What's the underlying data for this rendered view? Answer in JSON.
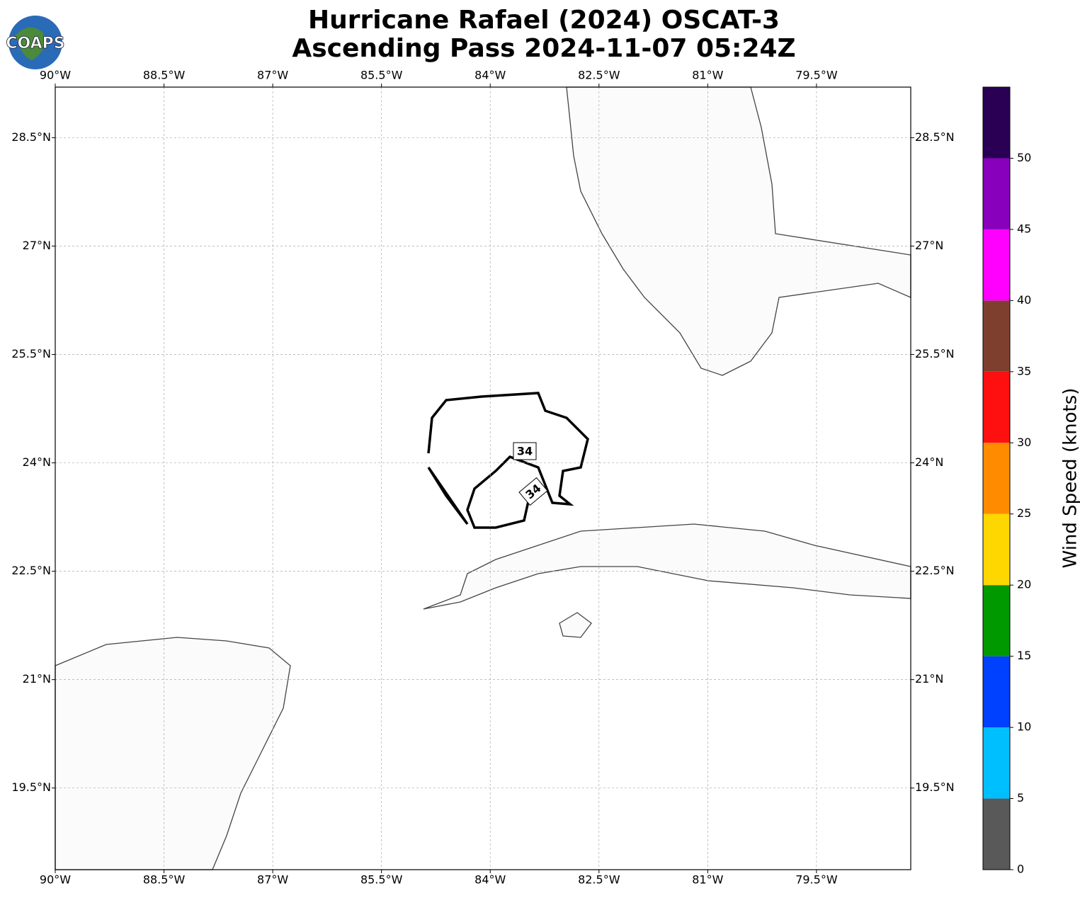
{
  "header": {
    "logo": "COAPS",
    "title_lines": [
      "Hurricane Rafael (2024) OSCAT-3",
      "Ascending Pass 2024-11-07 05:24Z"
    ]
  },
  "map": {
    "xlim": [
      -90,
      -78.2
    ],
    "ylim": [
      18.37,
      29.2
    ],
    "lon_ticks": [
      {
        "value": -90,
        "label": "90°W"
      },
      {
        "value": -88.5,
        "label": "88.5°W"
      },
      {
        "value": -87,
        "label": "87°W"
      },
      {
        "value": -85.5,
        "label": "85.5°W"
      },
      {
        "value": -84,
        "label": "84°W"
      },
      {
        "value": -82.5,
        "label": "82.5°W"
      },
      {
        "value": -81,
        "label": "81°W"
      },
      {
        "value": -79.5,
        "label": "79.5°W"
      }
    ],
    "lat_ticks": [
      {
        "value": 28.5,
        "label": "28.5°N"
      },
      {
        "value": 27,
        "label": "27°N"
      },
      {
        "value": 25.5,
        "label": "25.5°N"
      },
      {
        "value": 24,
        "label": "24°N"
      },
      {
        "value": 22.5,
        "label": "22.5°N"
      },
      {
        "value": 21,
        "label": "21°N"
      },
      {
        "value": 19.5,
        "label": "19.5°N"
      }
    ],
    "contour_label": "34"
  },
  "colorbar": {
    "label": "Wind Speed (knots)",
    "ylim": [
      0,
      55
    ],
    "yticks": [
      0,
      5,
      10,
      15,
      20,
      25,
      30,
      35,
      40,
      45,
      50
    ],
    "bounds": [
      0,
      5,
      10,
      15,
      20,
      25,
      30,
      35,
      40,
      45,
      50,
      55
    ],
    "colors": [
      "#595959",
      "#00bfff",
      "#0040ff",
      "#009900",
      "#ffd700",
      "#ff8c00",
      "#ff1010",
      "#7f3f2f",
      "#ff00ff",
      "#8800bb",
      "#2a0055"
    ]
  }
}
